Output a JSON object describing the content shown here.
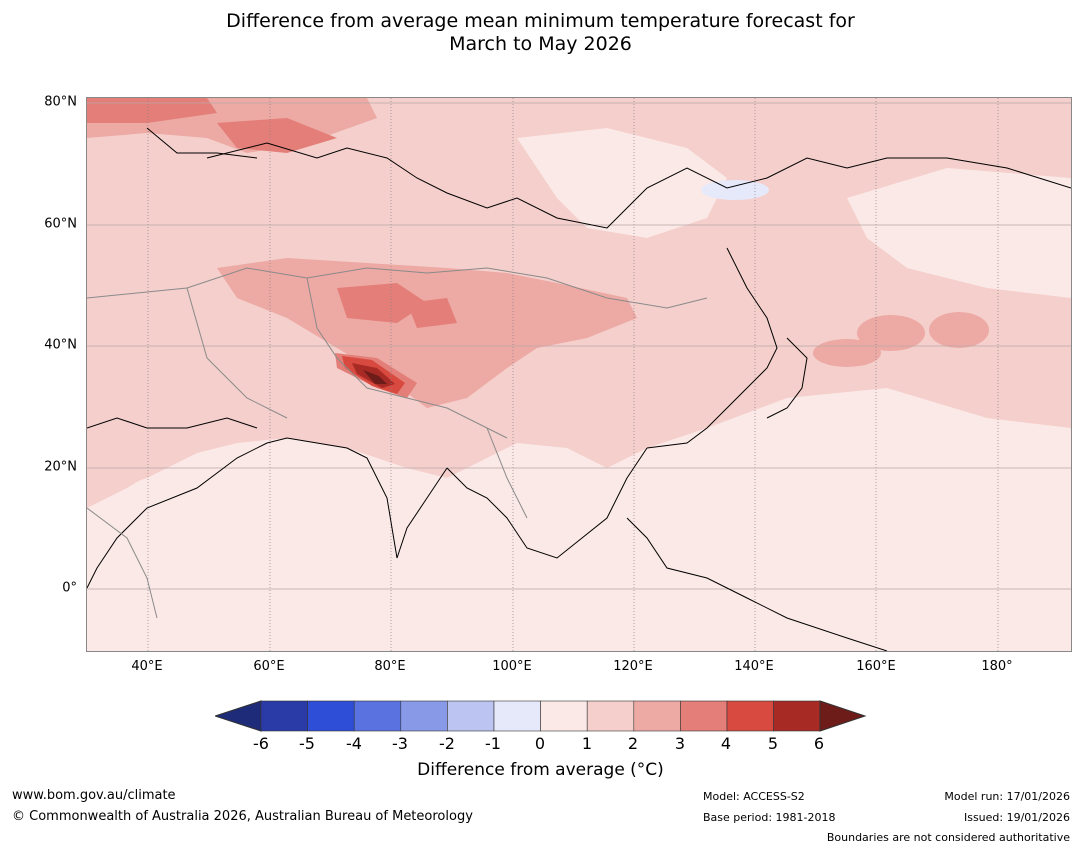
{
  "title": {
    "line1": "Difference from average mean minimum temperature forecast for",
    "line2": "March to May 2026"
  },
  "axes": {
    "lat_labels": [
      "80°N",
      "60°N",
      "40°N",
      "20°N",
      "0°"
    ],
    "lon_labels": [
      "40°E",
      "60°E",
      "80°E",
      "100°E",
      "120°E",
      "140°E",
      "160°E",
      "180°"
    ]
  },
  "colorbar": {
    "ticks": [
      "-6",
      "-5",
      "-4",
      "-3",
      "-2",
      "-1",
      "0",
      "1",
      "2",
      "3",
      "4",
      "5",
      "6"
    ],
    "colors": [
      "#2a3aa6",
      "#2f4ed8",
      "#5a72e0",
      "#8899e8",
      "#bcc5f2",
      "#e6e9fa",
      "#fbe9e7",
      "#f4cfcb",
      "#eda9a4",
      "#e47e78",
      "#d84a40",
      "#a82a25"
    ],
    "low_extend": "#1e2b78",
    "high_extend": "#6e1c1a",
    "label": "Difference from average (°C)"
  },
  "footer": {
    "url": "www.bom.gov.au/climate",
    "copyright": "© Commonwealth of Australia 2026, Australian Bureau of Meteorology",
    "model": "Model: ACCESS-S2",
    "base_period": "Base period: 1981-2018",
    "model_run": "Model run: 17/01/2026",
    "issued": "Issued: 19/01/2026",
    "disclaimer": "Boundaries are not considered authoritative"
  }
}
